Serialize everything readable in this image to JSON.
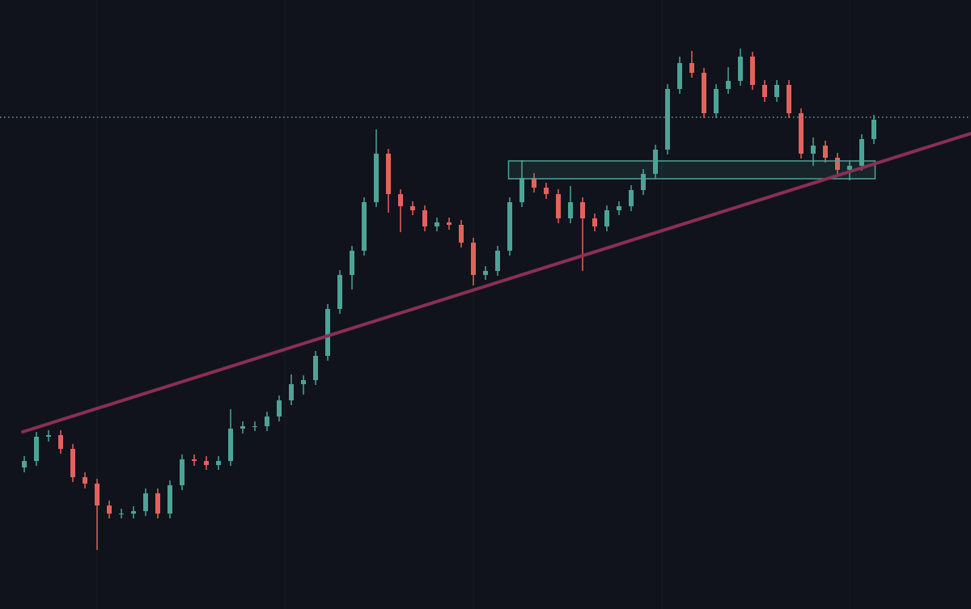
{
  "chart_data": {
    "type": "candlestick",
    "up_color": "#4ea397",
    "down_color": "#e2625c",
    "ylim": [
      0,
      753
    ],
    "open": [
      175,
      183,
      213,
      215,
      198,
      163,
      155,
      128,
      118,
      118,
      121,
      143,
      118,
      153,
      185,
      183,
      178,
      183,
      223,
      226,
      226,
      238,
      258,
      278,
      283,
      313,
      371,
      413,
      443,
      503,
      563,
      513,
      498,
      493,
      473,
      478,
      475,
      453,
      413,
      418,
      443,
      503,
      533,
      521,
      513,
      483,
      503,
      483,
      473,
      493,
      498,
      518,
      538,
      568,
      643,
      675,
      663,
      613,
      643,
      653,
      683,
      648,
      633,
      648,
      613,
      563,
      573,
      558,
      543,
      548,
      581
    ],
    "high": [
      189,
      219,
      221,
      221,
      204,
      169,
      161,
      134,
      124,
      127,
      149,
      149,
      159,
      191,
      191,
      189,
      189,
      247,
      232,
      232,
      244,
      264,
      290,
      289,
      319,
      377,
      419,
      449,
      509,
      593,
      569,
      519,
      504,
      499,
      484,
      484,
      481,
      459,
      424,
      449,
      509,
      555,
      539,
      527,
      519,
      523,
      509,
      489,
      499,
      504,
      524,
      544,
      574,
      649,
      683,
      690,
      669,
      649,
      670,
      693,
      689,
      654,
      654,
      654,
      619,
      583,
      579,
      564,
      554,
      587,
      611
    ],
    "low": [
      169,
      177,
      207,
      192,
      157,
      149,
      73,
      112,
      112,
      112,
      115,
      112,
      112,
      147,
      177,
      172,
      172,
      177,
      217,
      220,
      220,
      232,
      252,
      265,
      277,
      307,
      365,
      395,
      437,
      497,
      490,
      466,
      487,
      467,
      467,
      469,
      447,
      400,
      407,
      412,
      437,
      497,
      515,
      507,
      477,
      477,
      418,
      467,
      467,
      487,
      492,
      512,
      532,
      562,
      637,
      657,
      607,
      607,
      637,
      647,
      642,
      627,
      627,
      607,
      557,
      548,
      552,
      537,
      530,
      542,
      575
    ],
    "close": [
      183,
      213,
      215,
      198,
      163,
      155,
      128,
      118,
      118,
      121,
      143,
      118,
      153,
      185,
      183,
      178,
      183,
      223,
      226,
      226,
      238,
      258,
      278,
      283,
      313,
      371,
      413,
      443,
      503,
      563,
      513,
      498,
      493,
      473,
      478,
      475,
      453,
      413,
      418,
      443,
      503,
      533,
      521,
      513,
      483,
      503,
      483,
      473,
      493,
      498,
      518,
      538,
      568,
      643,
      675,
      663,
      613,
      643,
      653,
      683,
      648,
      633,
      648,
      613,
      563,
      573,
      558,
      543,
      548,
      581,
      605
    ],
    "price_line": {
      "value": 608,
      "color": "#7fb5b0"
    },
    "trendline": {
      "start": {
        "x": -0.13,
        "value": 219
      },
      "end": {
        "x": 78,
        "value": 588
      },
      "color": "#8a2f55"
    },
    "zone": {
      "x": [
        39.9,
        70.1
      ],
      "low": 532,
      "high": 554,
      "color": "#4ea397"
    }
  }
}
